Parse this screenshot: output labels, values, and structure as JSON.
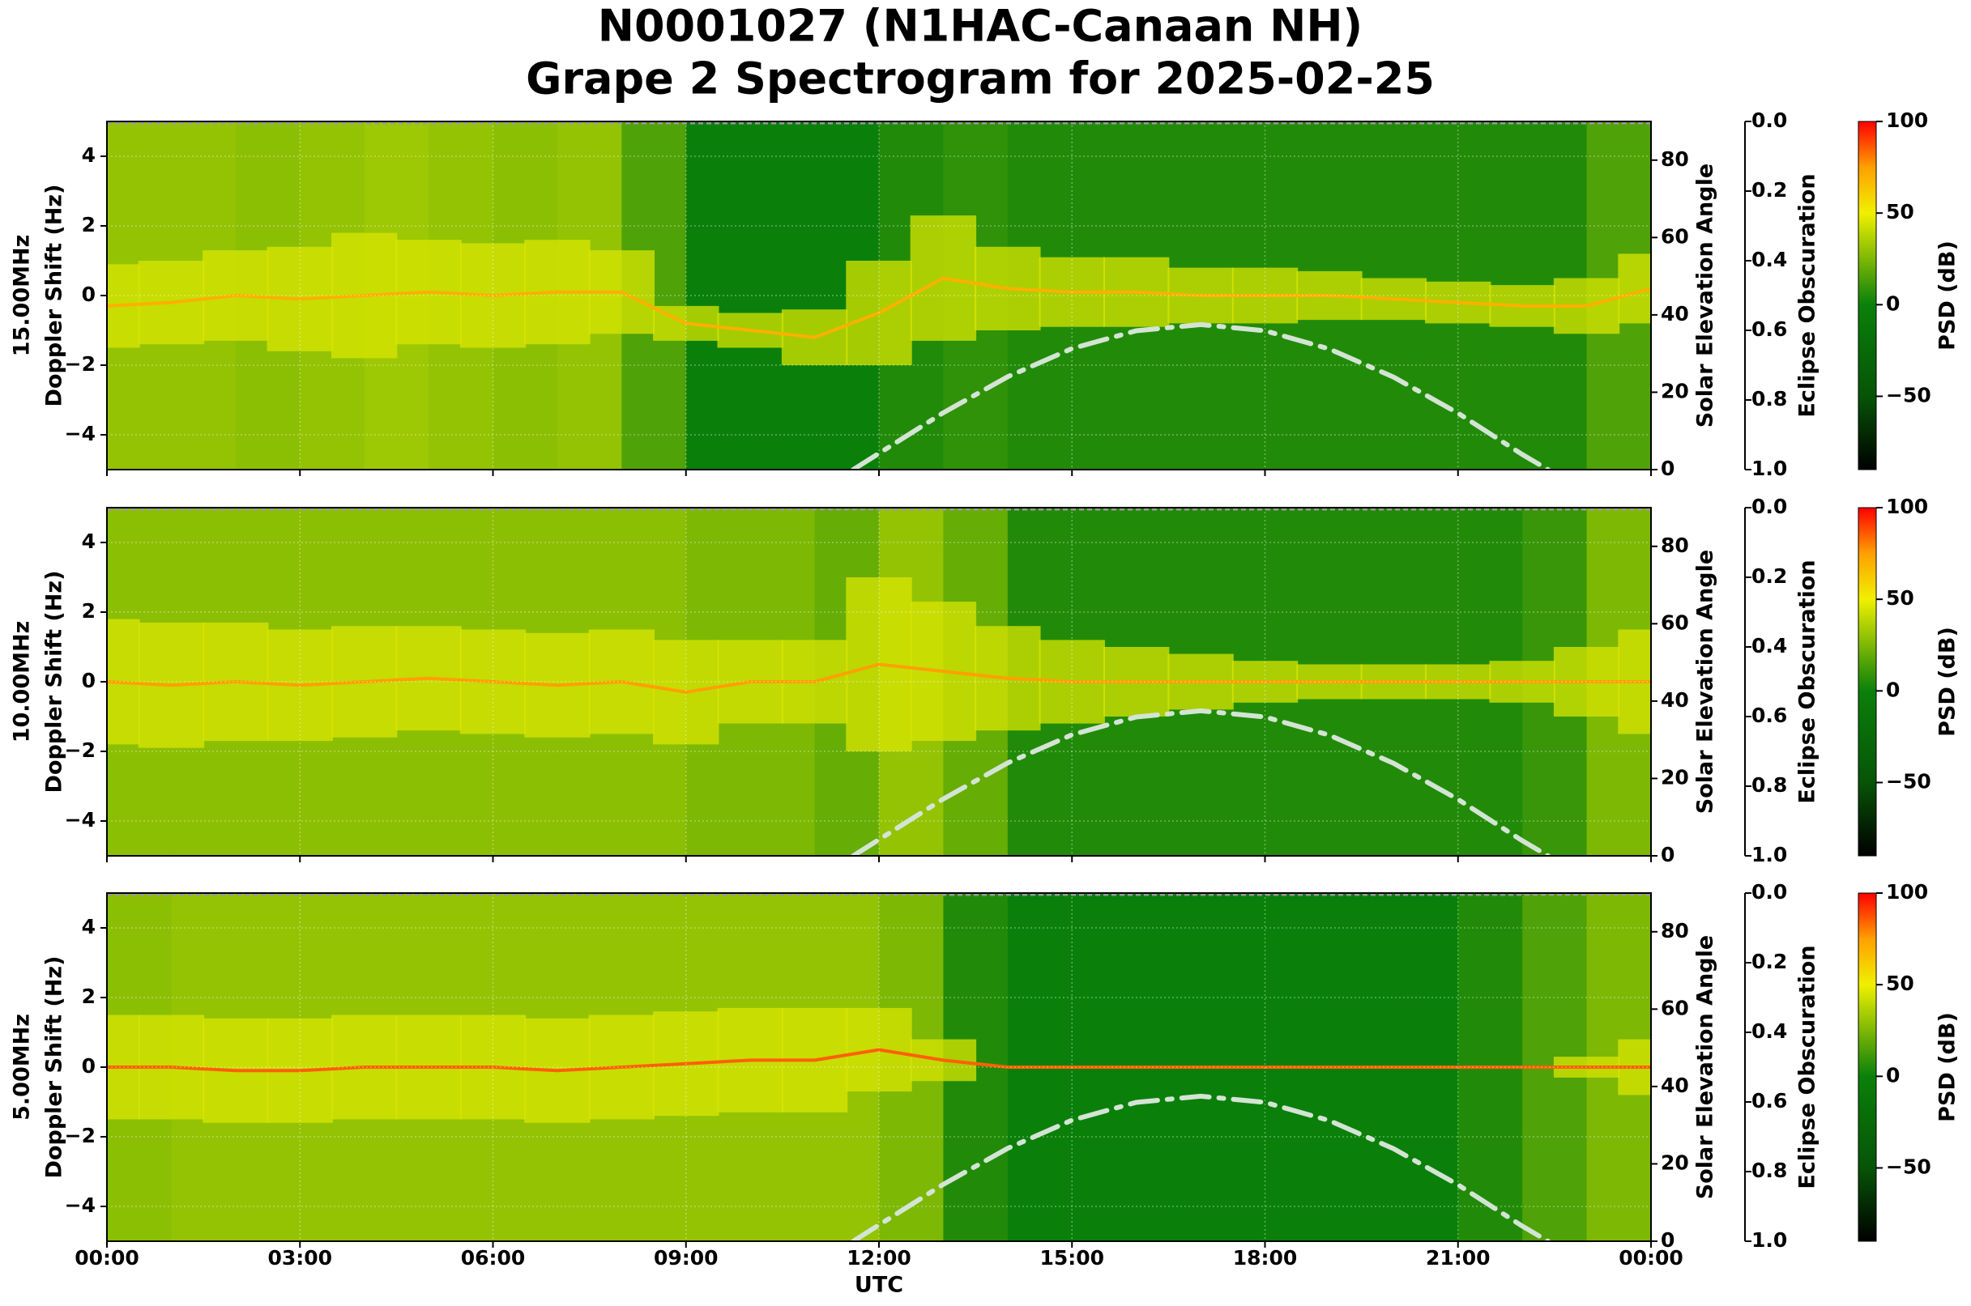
{
  "title": [
    "N0001027 (N1HAC-Canaan NH)",
    "Grape 2 Spectrogram for 2025-02-25"
  ],
  "colormap": [
    {
      "value": -90,
      "color": "#000000"
    },
    {
      "value": -50,
      "color": "#075407"
    },
    {
      "value": 0,
      "color": "#0a800a"
    },
    {
      "value": 50,
      "color": "#f0f000"
    },
    {
      "value": 75,
      "color": "#ffa000"
    },
    {
      "value": 100,
      "color": "#ff0000"
    }
  ],
  "chart_data": [
    {
      "type": "spectrogram",
      "ylabel": [
        "15.00MHz",
        "Doppler Shift (Hz)"
      ],
      "ylim": [
        -5,
        5
      ],
      "yticks": [
        {
          "value": -4,
          "label": "−4"
        },
        {
          "value": -2,
          "label": "−2"
        },
        0,
        2,
        4
      ],
      "y2label": "Solar Elevation Angle",
      "y2lim": [
        0,
        90
      ],
      "y2ticks": [
        0,
        20,
        40,
        60,
        80
      ],
      "y3label": "Eclipse Obscuration",
      "y3lim": [
        1,
        0
      ],
      "y3ticks": [
        {
          "value": 0,
          "label": "0.0"
        },
        {
          "value": 0.2,
          "label": "0.2"
        },
        {
          "value": 0.4,
          "label": "0.4"
        },
        {
          "value": 0.6,
          "label": "0.6"
        },
        {
          "value": 0.8,
          "label": "0.8"
        },
        {
          "value": 1,
          "label": "1.0"
        }
      ],
      "clabel": "PSD (dB)",
      "clim": [
        -90,
        100
      ],
      "cticks": [
        {
          "value": -50,
          "label": "−50"
        },
        0,
        50,
        100
      ],
      "xlim": [
        0,
        24
      ],
      "xticks": [
        0,
        3,
        6,
        9,
        12,
        15,
        18,
        21,
        24
      ],
      "grid": true,
      "background": {
        "bins": [
          0,
          1,
          2,
          3,
          4,
          5,
          6,
          7,
          8,
          9,
          10,
          11,
          12,
          13,
          14,
          15,
          16,
          17,
          18,
          19,
          20,
          21,
          22,
          23,
          24
        ],
        "psd": [
          30,
          30,
          28,
          30,
          32,
          30,
          28,
          30,
          15,
          0,
          0,
          0,
          5,
          8,
          5,
          5,
          5,
          5,
          5,
          5,
          5,
          5,
          5,
          15
        ]
      },
      "trace": {
        "x": [
          0,
          1,
          2,
          3,
          4,
          5,
          6,
          7,
          8,
          9,
          10,
          11,
          12,
          13,
          14,
          15,
          16,
          17,
          18,
          19,
          20,
          21,
          22,
          23,
          24
        ],
        "doppler": [
          -0.3,
          -0.2,
          0,
          -0.1,
          0,
          0.1,
          0,
          0.1,
          0.1,
          -0.8,
          -1.0,
          -1.2,
          -0.5,
          0.5,
          0.2,
          0.1,
          0.1,
          0,
          0,
          0,
          -0.1,
          -0.2,
          -0.3,
          -0.3,
          0.2
        ],
        "spread": [
          1.2,
          1.2,
          1.3,
          1.5,
          1.8,
          1.5,
          1.5,
          1.5,
          1.2,
          0.5,
          0.5,
          0.8,
          1.5,
          1.8,
          1.2,
          1,
          1,
          0.8,
          0.8,
          0.7,
          0.6,
          0.6,
          0.6,
          0.8,
          1.0
        ],
        "psd": 70,
        "spread_psd": 45
      },
      "solar": {
        "x": [
          11.6,
          12,
          13,
          14,
          15,
          16,
          17,
          18,
          19,
          20,
          21,
          22,
          22.4
        ],
        "values": [
          0,
          4.2,
          14.7,
          24,
          31.3,
          35.9,
          37.5,
          35.9,
          31.2,
          23.9,
          14.6,
          3.9,
          0
        ],
        "color": "#d4e4d4"
      },
      "obscuration": {
        "x": [
          0,
          24
        ],
        "values": [
          0,
          0
        ],
        "color": "#999999"
      }
    },
    {
      "type": "spectrogram",
      "ylabel": [
        "10.00MHz",
        "Doppler Shift (Hz)"
      ],
      "ylim": [
        -5,
        5
      ],
      "yticks": [
        {
          "value": -4,
          "label": "−4"
        },
        {
          "value": -2,
          "label": "−2"
        },
        0,
        2,
        4
      ],
      "y2label": "Solar Elevation Angle",
      "y2lim": [
        0,
        90
      ],
      "y2ticks": [
        0,
        20,
        40,
        60,
        80
      ],
      "y3label": "Eclipse Obscuration",
      "y3lim": [
        1,
        0
      ],
      "y3ticks": [
        {
          "value": 0,
          "label": "0.0"
        },
        {
          "value": 0.2,
          "label": "0.2"
        },
        {
          "value": 0.4,
          "label": "0.4"
        },
        {
          "value": 0.6,
          "label": "0.6"
        },
        {
          "value": 0.8,
          "label": "0.8"
        },
        {
          "value": 1,
          "label": "1.0"
        }
      ],
      "clabel": "PSD (dB)",
      "clim": [
        -90,
        100
      ],
      "cticks": [
        {
          "value": -50,
          "label": "−50"
        },
        0,
        50,
        100
      ],
      "xlim": [
        0,
        24
      ],
      "xticks": [
        0,
        3,
        6,
        9,
        12,
        15,
        18,
        21,
        24
      ],
      "grid": true,
      "background": {
        "bins": [
          0,
          1,
          2,
          3,
          4,
          5,
          6,
          7,
          8,
          9,
          10,
          11,
          12,
          13,
          14,
          15,
          16,
          17,
          18,
          19,
          20,
          21,
          22,
          23,
          24
        ],
        "psd": [
          28,
          28,
          28,
          28,
          28,
          28,
          28,
          28,
          28,
          25,
          25,
          20,
          30,
          20,
          5,
          5,
          5,
          5,
          5,
          5,
          5,
          5,
          10,
          25
        ]
      },
      "trace": {
        "x": [
          0,
          1,
          2,
          3,
          4,
          5,
          6,
          7,
          8,
          9,
          10,
          11,
          12,
          13,
          14,
          15,
          16,
          17,
          18,
          19,
          20,
          21,
          22,
          23,
          24
        ],
        "doppler": [
          0,
          -0.1,
          0,
          -0.1,
          0,
          0.1,
          0,
          -0.1,
          0,
          -0.3,
          0,
          0,
          0.5,
          0.3,
          0.1,
          0,
          0,
          0,
          0,
          0,
          0,
          0,
          0,
          0,
          0
        ],
        "spread": [
          1.8,
          1.8,
          1.7,
          1.6,
          1.6,
          1.5,
          1.5,
          1.5,
          1.5,
          1.5,
          1.2,
          1.2,
          2.5,
          2.0,
          1.5,
          1.2,
          1,
          0.8,
          0.6,
          0.5,
          0.5,
          0.5,
          0.6,
          1.0,
          1.5
        ],
        "psd": 75,
        "spread_psd": 45
      },
      "solar": {
        "x": [
          11.6,
          12,
          13,
          14,
          15,
          16,
          17,
          18,
          19,
          20,
          21,
          22,
          22.4
        ],
        "values": [
          0,
          4.2,
          14.7,
          24,
          31.3,
          35.9,
          37.5,
          35.9,
          31.2,
          23.9,
          14.6,
          3.9,
          0
        ],
        "color": "#d4e4d4"
      },
      "obscuration": {
        "x": [
          0,
          24
        ],
        "values": [
          0,
          0
        ],
        "color": "#999999"
      }
    },
    {
      "type": "spectrogram",
      "ylabel": [
        "5.00MHz",
        "Doppler Shift (Hz)"
      ],
      "ylim": [
        -5,
        5
      ],
      "yticks": [
        {
          "value": -4,
          "label": "−4"
        },
        {
          "value": -2,
          "label": "−2"
        },
        0,
        2,
        4
      ],
      "y2label": "Solar Elevation Angle",
      "y2lim": [
        0,
        90
      ],
      "y2ticks": [
        0,
        20,
        40,
        60,
        80
      ],
      "y3label": "Eclipse Obscuration",
      "y3lim": [
        1,
        0
      ],
      "y3ticks": [
        {
          "value": 0,
          "label": "0.0"
        },
        {
          "value": 0.2,
          "label": "0.2"
        },
        {
          "value": 0.4,
          "label": "0.4"
        },
        {
          "value": 0.6,
          "label": "0.6"
        },
        {
          "value": 0.8,
          "label": "0.8"
        },
        {
          "value": 1,
          "label": "1.0"
        }
      ],
      "clabel": "PSD (dB)",
      "clim": [
        -90,
        100
      ],
      "cticks": [
        {
          "value": -50,
          "label": "−50"
        },
        0,
        50,
        100
      ],
      "xlabel": "UTC",
      "xlim": [
        0,
        24
      ],
      "xticks": [
        {
          "value": 0,
          "label": "00:00"
        },
        {
          "value": 3,
          "label": "03:00"
        },
        {
          "value": 6,
          "label": "06:00"
        },
        {
          "value": 9,
          "label": "09:00"
        },
        {
          "value": 12,
          "label": "12:00"
        },
        {
          "value": 15,
          "label": "15:00"
        },
        {
          "value": 18,
          "label": "18:00"
        },
        {
          "value": 21,
          "label": "21:00"
        },
        {
          "value": 24,
          "label": "00:00"
        }
      ],
      "grid": true,
      "background": {
        "bins": [
          0,
          1,
          2,
          3,
          4,
          5,
          6,
          7,
          8,
          9,
          10,
          11,
          12,
          13,
          14,
          15,
          16,
          17,
          18,
          19,
          20,
          21,
          22,
          23,
          24
        ],
        "psd": [
          28,
          30,
          30,
          30,
          30,
          30,
          30,
          30,
          30,
          30,
          30,
          30,
          25,
          5,
          0,
          0,
          0,
          0,
          0,
          0,
          0,
          5,
          15,
          25
        ]
      },
      "trace": {
        "x": [
          0,
          1,
          2,
          3,
          4,
          5,
          6,
          7,
          8,
          9,
          10,
          11,
          12,
          13,
          14,
          15,
          16,
          17,
          18,
          19,
          20,
          21,
          22,
          23,
          24
        ],
        "doppler": [
          0,
          0,
          -0.1,
          -0.1,
          0,
          0,
          0,
          -0.1,
          0,
          0.1,
          0.2,
          0.2,
          0.5,
          0.2,
          0,
          0,
          0,
          0,
          0,
          0,
          0,
          0,
          0,
          0,
          0
        ],
        "spread": [
          1.5,
          1.5,
          1.5,
          1.5,
          1.5,
          1.5,
          1.5,
          1.5,
          1.5,
          1.5,
          1.5,
          1.5,
          1.2,
          0.6,
          0,
          0,
          0,
          0,
          0,
          0,
          0,
          0,
          0,
          0.3,
          0.8
        ],
        "psd": 85,
        "spread_psd": 45
      },
      "solar": {
        "x": [
          11.6,
          12,
          13,
          14,
          15,
          16,
          17,
          18,
          19,
          20,
          21,
          22,
          22.4
        ],
        "values": [
          0,
          4.2,
          14.7,
          24,
          31.3,
          35.9,
          37.5,
          35.9,
          31.2,
          23.9,
          14.6,
          3.9,
          0
        ],
        "color": "#d4e4d4"
      },
      "obscuration": {
        "x": [
          0,
          24
        ],
        "values": [
          0,
          0
        ],
        "color": "#999999"
      }
    }
  ]
}
